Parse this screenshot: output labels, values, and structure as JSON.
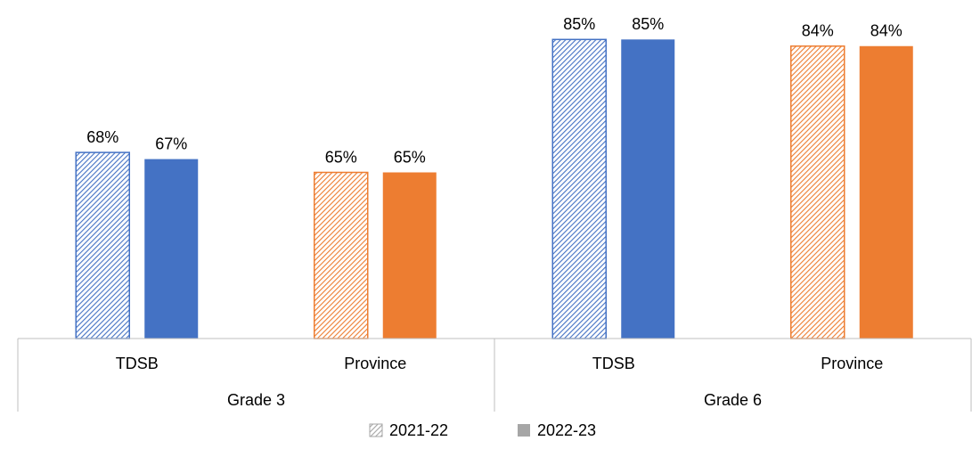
{
  "chart_data": {
    "type": "bar",
    "groups": [
      "Grade 3",
      "Grade 6"
    ],
    "categories": [
      "TDSB",
      "Province",
      "TDSB",
      "Province"
    ],
    "category_colors": [
      "#4472c4",
      "#ed7d31",
      "#4472c4",
      "#ed7d31"
    ],
    "legend_color": "#a6a6a6",
    "series": [
      {
        "name": "2021-22",
        "pattern": "hatch",
        "values": [
          68,
          65,
          85,
          84
        ],
        "value_labels": [
          "68%",
          "65%",
          "85%",
          "84%"
        ]
      },
      {
        "name": "2022-23",
        "pattern": "solid",
        "values": [
          67,
          65,
          85,
          84
        ],
        "value_labels": [
          "67%",
          "65%",
          "85%",
          "84%"
        ]
      }
    ],
    "ylim": [
      40,
      90
    ]
  }
}
